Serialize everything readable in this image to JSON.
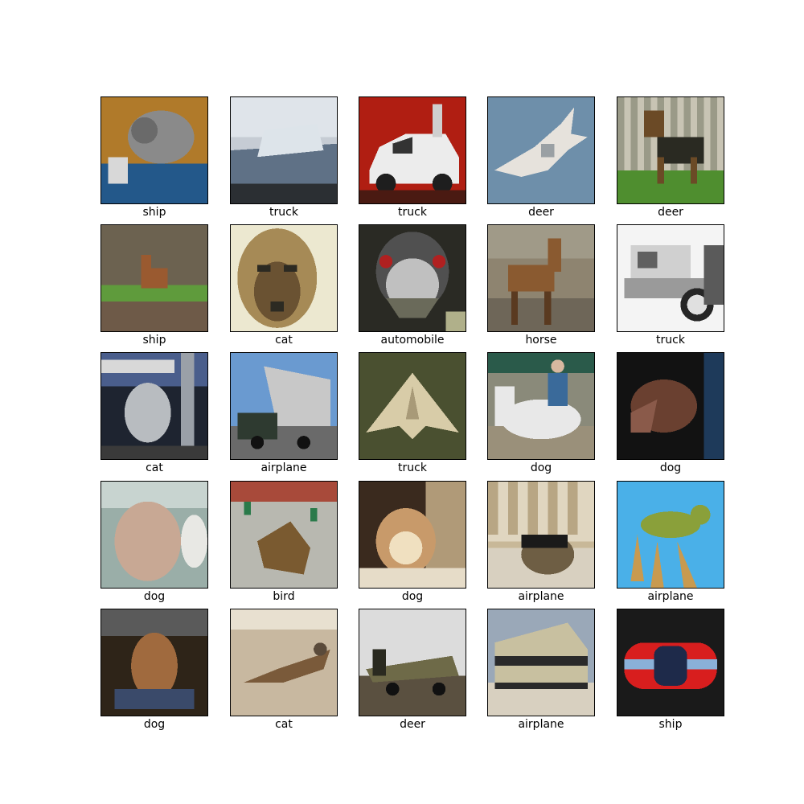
{
  "images": [
    {
      "label": "ship",
      "scene": "cat-on-blue",
      "colors": {
        "bg": "#b07a2a",
        "main": "#8a8a8a",
        "accent": "#23588a"
      }
    },
    {
      "label": "truck",
      "scene": "boat",
      "colors": {
        "bg": "#c6ccd4",
        "main": "#5f7186",
        "accent": "#2b2f33"
      }
    },
    {
      "label": "truck",
      "scene": "car",
      "colors": {
        "bg": "#b01e12",
        "main": "#ececec",
        "accent": "#1e1e1e"
      }
    },
    {
      "label": "deer",
      "scene": "jet",
      "colors": {
        "bg": "#6e8faa",
        "main": "#e6e2dc",
        "accent": "#9aa0a4"
      }
    },
    {
      "label": "deer",
      "scene": "dog-on-grass",
      "colors": {
        "bg": "#8e9a7c",
        "main": "#6b4a26",
        "accent": "#4f8e2f"
      }
    },
    {
      "label": "ship",
      "scene": "deer-in-field",
      "colors": {
        "bg": "#6c6250",
        "main": "#9a5a30",
        "accent": "#5f9b3c"
      }
    },
    {
      "label": "cat",
      "scene": "dog-face",
      "colors": {
        "bg": "#ece8d0",
        "main": "#6a5232",
        "accent": "#2c2a22"
      }
    },
    {
      "label": "automobile",
      "scene": "emu",
      "colors": {
        "bg": "#4a4838",
        "main": "#c0c0c0",
        "accent": "#b02020"
      }
    },
    {
      "label": "horse",
      "scene": "deer-standing",
      "colors": {
        "bg": "#8e8470",
        "main": "#8a5a30",
        "accent": "#6e6658"
      }
    },
    {
      "label": "truck",
      "scene": "old-car",
      "colors": {
        "bg": "#f4f4f4",
        "main": "#d0d0d0",
        "accent": "#262626"
      }
    },
    {
      "label": "cat",
      "scene": "tanker",
      "colors": {
        "bg": "#4a5e8c",
        "main": "#b8bcc0",
        "accent": "#1e2430"
      }
    },
    {
      "label": "airplane",
      "scene": "dump-truck",
      "colors": {
        "bg": "#6a9ad0",
        "main": "#c8c8c8",
        "accent": "#2e3a30"
      }
    },
    {
      "label": "truck",
      "scene": "stealth-plane",
      "colors": {
        "bg": "#4a5030",
        "main": "#d8cca8",
        "accent": "#3a4028"
      }
    },
    {
      "label": "dog",
      "scene": "rider-horse",
      "colors": {
        "bg": "#8a8a7a",
        "main": "#e8e8e8",
        "accent": "#2a4a3a"
      }
    },
    {
      "label": "dog",
      "scene": "horse-head-dark",
      "colors": {
        "bg": "#121212",
        "main": "#6a4030",
        "accent": "#1e3a5a"
      }
    },
    {
      "label": "dog",
      "scene": "pale-animal",
      "colors": {
        "bg": "#9aaea8",
        "main": "#c8a894",
        "accent": "#e8e8e4"
      }
    },
    {
      "label": "bird",
      "scene": "brown-blob",
      "colors": {
        "bg": "#b8b8b0",
        "main": "#7a5a30",
        "accent": "#2a7a4a"
      }
    },
    {
      "label": "dog",
      "scene": "cat-dark",
      "colors": {
        "bg": "#3a2a1e",
        "main": "#c89a6a",
        "accent": "#f0e0c0"
      }
    },
    {
      "label": "airplane",
      "scene": "cat-window",
      "colors": {
        "bg": "#c8b898",
        "main": "#6e5e44",
        "accent": "#1a1a1a"
      }
    },
    {
      "label": "airplane",
      "scene": "bird-on-branch",
      "colors": {
        "bg": "#4ab0e8",
        "main": "#8aa03a",
        "accent": "#c89a50"
      }
    },
    {
      "label": "dog",
      "scene": "dog-sitting-dark",
      "colors": {
        "bg": "#2e2418",
        "main": "#a06a3e",
        "accent": "#3a4a6a"
      }
    },
    {
      "label": "cat",
      "scene": "bird-ground",
      "colors": {
        "bg": "#c8b8a0",
        "main": "#7a5a3a",
        "accent": "#e8e0d0"
      }
    },
    {
      "label": "deer",
      "scene": "propeller-plane",
      "colors": {
        "bg": "#dcdcdc",
        "main": "#6e6a48",
        "accent": "#2a2a20"
      }
    },
    {
      "label": "airplane",
      "scene": "trailer",
      "colors": {
        "bg": "#9aa8b8",
        "main": "#c8c0a0",
        "accent": "#2a2a2a"
      }
    },
    {
      "label": "ship",
      "scene": "red-car-top",
      "colors": {
        "bg": "#1a1a1a",
        "main": "#d81e1e",
        "accent": "#8ab0d8"
      }
    }
  ]
}
